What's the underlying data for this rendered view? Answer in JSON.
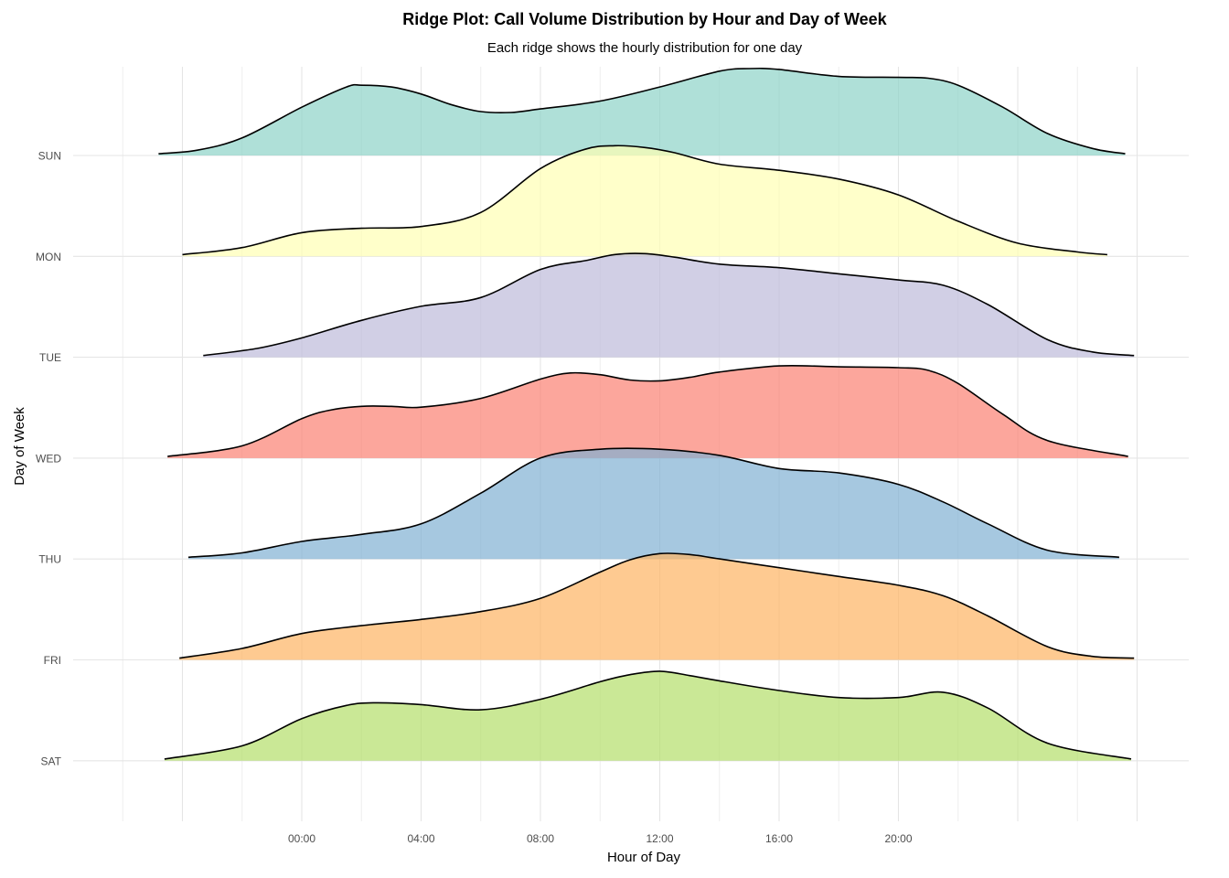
{
  "chart_data": {
    "type": "area",
    "title": "Ridge Plot: Call Volume Distribution by Hour and Day of Week",
    "subtitle": "Each ridge shows the hourly distribution for one day",
    "xlabel": "Hour of Day",
    "ylabel": "Day of Week",
    "x_ticks": [
      "00:00",
      "04:00",
      "08:00",
      "12:00",
      "16:00",
      "20:00"
    ],
    "x_tick_values": [
      0,
      4,
      8,
      12,
      16,
      20
    ],
    "xlim": [
      -7.5,
      29.5
    ],
    "grid": true,
    "legend": "none",
    "series": [
      {
        "name": "SUN",
        "color": "#8dd3c7",
        "x": [
          -4.8,
          -3.5,
          -2,
          0,
          1.5,
          2,
          3,
          4,
          5,
          6,
          7,
          8,
          10,
          12,
          14,
          15,
          16,
          18,
          20,
          21,
          22,
          23.5,
          25,
          26.5,
          27.6
        ],
        "y": [
          0.02,
          0.06,
          0.2,
          0.55,
          0.78,
          0.8,
          0.78,
          0.7,
          0.58,
          0.5,
          0.49,
          0.53,
          0.62,
          0.78,
          0.96,
          0.99,
          0.98,
          0.9,
          0.89,
          0.88,
          0.8,
          0.55,
          0.25,
          0.08,
          0.02
        ]
      },
      {
        "name": "MON",
        "color": "#ffffb3",
        "x": [
          -4,
          -2,
          0,
          2,
          4,
          6,
          8,
          9.5,
          10.5,
          11.5,
          12.5,
          14,
          16,
          18,
          20,
          22,
          24,
          26,
          27
        ],
        "y": [
          0.02,
          0.1,
          0.27,
          0.32,
          0.34,
          0.5,
          1.0,
          1.22,
          1.26,
          1.24,
          1.18,
          1.05,
          0.98,
          0.88,
          0.7,
          0.4,
          0.15,
          0.05,
          0.02
        ]
      },
      {
        "name": "TUE",
        "color": "#bebada",
        "x": [
          -3.3,
          -1.5,
          0,
          2,
          4,
          6,
          8,
          9.5,
          10.5,
          11.5,
          12.5,
          14,
          16,
          18,
          20,
          21.5,
          23,
          25,
          26.5,
          27.9
        ],
        "y": [
          0.02,
          0.1,
          0.22,
          0.42,
          0.58,
          0.68,
          1.0,
          1.1,
          1.17,
          1.18,
          1.14,
          1.06,
          1.02,
          0.95,
          0.88,
          0.82,
          0.6,
          0.2,
          0.06,
          0.02
        ]
      },
      {
        "name": "WED",
        "color": "#fb8072",
        "x": [
          -4.5,
          -2,
          0,
          1,
          2,
          3,
          4,
          6,
          8,
          9,
          10,
          11,
          12,
          13,
          14,
          16,
          18,
          20,
          21,
          22,
          23.5,
          25,
          27.7
        ],
        "y": [
          0.02,
          0.14,
          0.45,
          0.55,
          0.59,
          0.59,
          0.58,
          0.68,
          0.9,
          0.97,
          0.95,
          0.89,
          0.88,
          0.92,
          0.98,
          1.05,
          1.04,
          1.03,
          1.0,
          0.85,
          0.5,
          0.2,
          0.02
        ]
      },
      {
        "name": "THU",
        "color": "#80b1d3",
        "x": [
          -3.8,
          -2,
          0,
          2,
          4,
          6,
          8,
          10,
          12,
          14,
          16,
          18,
          20,
          21.5,
          23,
          25,
          27.4
        ],
        "y": [
          0.02,
          0.07,
          0.2,
          0.28,
          0.4,
          0.75,
          1.15,
          1.25,
          1.25,
          1.18,
          1.03,
          0.98,
          0.85,
          0.65,
          0.4,
          0.1,
          0.02
        ]
      },
      {
        "name": "FRI",
        "color": "#fdb462",
        "x": [
          -4.1,
          -2,
          0,
          2,
          4,
          6,
          8,
          10,
          11,
          12,
          13,
          14,
          16,
          18,
          20,
          21.5,
          23,
          25,
          26.5,
          27.9
        ],
        "y": [
          0.02,
          0.13,
          0.3,
          0.39,
          0.46,
          0.55,
          0.7,
          1.0,
          1.14,
          1.21,
          1.2,
          1.15,
          1.05,
          0.95,
          0.85,
          0.73,
          0.5,
          0.15,
          0.04,
          0.02
        ]
      },
      {
        "name": "SAT",
        "color": "#b3de69",
        "x": [
          -4.6,
          -2,
          0,
          1.5,
          2.5,
          4,
          6,
          8,
          10,
          11,
          12,
          13,
          14,
          16,
          18,
          20,
          21.5,
          23,
          25,
          27.8
        ],
        "y": [
          0.02,
          0.17,
          0.48,
          0.63,
          0.66,
          0.64,
          0.58,
          0.7,
          0.9,
          0.98,
          1.02,
          0.97,
          0.91,
          0.8,
          0.72,
          0.72,
          0.78,
          0.6,
          0.2,
          0.02
        ]
      }
    ]
  }
}
